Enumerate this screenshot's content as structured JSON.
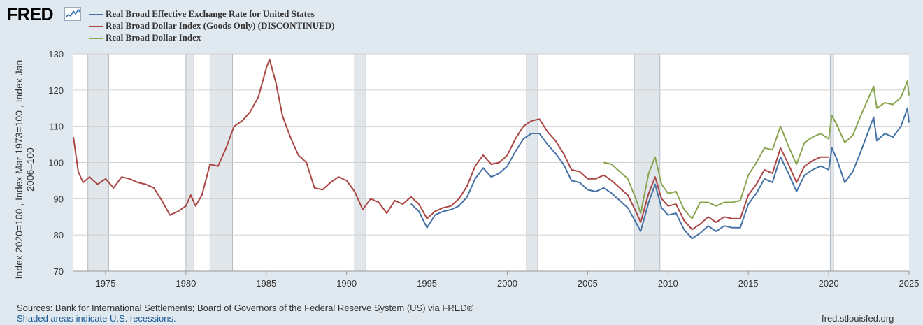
{
  "header": {
    "logo_text": "FRED",
    "logo_icon": "chart-line-icon"
  },
  "footer": {
    "sources": "Sources: Bank for International Settlements; Board of Governors of the Federal Reserve System (US) via FRED®",
    "recession_note": "Shaded areas indicate U.S. recessions.",
    "credit": "fred.stlouisfed.org"
  },
  "chart_data": {
    "type": "line",
    "title": "",
    "xlabel": "",
    "ylabel_lines": [
      "Index 2020=100 , Index Mar 1973=100 , Index Jan",
      "2006=100"
    ],
    "xlim": [
      1973.0,
      2025.0
    ],
    "ylim": [
      70,
      130
    ],
    "x_ticks": [
      1975,
      1980,
      1985,
      1990,
      1995,
      2000,
      2005,
      2010,
      2015,
      2020,
      2025
    ],
    "y_ticks": [
      70,
      80,
      90,
      100,
      110,
      120,
      130
    ],
    "grid": true,
    "legend_position": "top-left",
    "recessions": [
      [
        1973.9,
        1975.2
      ],
      [
        1980.0,
        1980.5
      ],
      [
        1981.5,
        1982.9
      ],
      [
        1990.5,
        1991.2
      ],
      [
        2001.2,
        2001.9
      ],
      [
        2007.9,
        2009.5
      ],
      [
        2020.1,
        2020.3
      ]
    ],
    "series": [
      {
        "name": "Real Broad Effective Exchange Rate for United States",
        "color": "#4572a7",
        "points": [
          [
            1994.0,
            88.6
          ],
          [
            1994.5,
            86.5
          ],
          [
            1995.0,
            82.0
          ],
          [
            1995.5,
            85.5
          ],
          [
            1996.0,
            86.5
          ],
          [
            1996.5,
            87.0
          ],
          [
            1997.0,
            88.0
          ],
          [
            1997.5,
            90.5
          ],
          [
            1998.0,
            95.5
          ],
          [
            1998.5,
            98.5
          ],
          [
            1999.0,
            96.0
          ],
          [
            1999.5,
            97.0
          ],
          [
            2000.0,
            99.0
          ],
          [
            2000.5,
            103.0
          ],
          [
            2001.0,
            106.5
          ],
          [
            2001.5,
            108.0
          ],
          [
            2002.0,
            108.0
          ],
          [
            2002.5,
            105.0
          ],
          [
            2003.0,
            102.5
          ],
          [
            2003.5,
            99.5
          ],
          [
            2004.0,
            95.0
          ],
          [
            2004.5,
            94.5
          ],
          [
            2005.0,
            92.5
          ],
          [
            2005.5,
            92.0
          ],
          [
            2006.0,
            93.0
          ],
          [
            2006.5,
            91.5
          ],
          [
            2007.0,
            89.5
          ],
          [
            2007.5,
            87.5
          ],
          [
            2008.0,
            83.5
          ],
          [
            2008.3,
            81.0
          ],
          [
            2008.8,
            89.0
          ],
          [
            2009.2,
            94.0
          ],
          [
            2009.6,
            87.5
          ],
          [
            2010.0,
            85.5
          ],
          [
            2010.5,
            86.0
          ],
          [
            2011.0,
            81.5
          ],
          [
            2011.5,
            79.0
          ],
          [
            2012.0,
            80.5
          ],
          [
            2012.5,
            82.5
          ],
          [
            2013.0,
            81.0
          ],
          [
            2013.5,
            82.5
          ],
          [
            2014.0,
            82.0
          ],
          [
            2014.5,
            82.0
          ],
          [
            2015.0,
            88.5
          ],
          [
            2015.5,
            91.5
          ],
          [
            2016.0,
            95.5
          ],
          [
            2016.5,
            94.5
          ],
          [
            2017.0,
            101.5
          ],
          [
            2017.5,
            97.0
          ],
          [
            2018.0,
            92.0
          ],
          [
            2018.5,
            96.5
          ],
          [
            2019.0,
            98.0
          ],
          [
            2019.5,
            99.0
          ],
          [
            2020.0,
            98.0
          ],
          [
            2020.2,
            104.0
          ],
          [
            2020.5,
            101.0
          ],
          [
            2021.0,
            94.5
          ],
          [
            2021.5,
            97.5
          ],
          [
            2022.0,
            103.0
          ],
          [
            2022.8,
            112.5
          ],
          [
            2023.0,
            106.0
          ],
          [
            2023.5,
            108.0
          ],
          [
            2024.0,
            107.0
          ],
          [
            2024.5,
            110.0
          ],
          [
            2024.9,
            115.0
          ],
          [
            2025.0,
            111.0
          ]
        ]
      },
      {
        "name": "Real Broad Dollar Index (Goods Only) (DISCONTINUED)",
        "color": "#aa4643",
        "points": [
          [
            1973.0,
            107.0
          ],
          [
            1973.3,
            97.5
          ],
          [
            1973.6,
            94.5
          ],
          [
            1974.0,
            96.0
          ],
          [
            1974.5,
            94.0
          ],
          [
            1975.0,
            95.5
          ],
          [
            1975.5,
            93.0
          ],
          [
            1976.0,
            96.0
          ],
          [
            1976.5,
            95.5
          ],
          [
            1977.0,
            94.5
          ],
          [
            1977.5,
            94.0
          ],
          [
            1978.0,
            93.0
          ],
          [
            1978.5,
            89.5
          ],
          [
            1979.0,
            85.5
          ],
          [
            1979.5,
            86.5
          ],
          [
            1980.0,
            88.0
          ],
          [
            1980.3,
            91.0
          ],
          [
            1980.6,
            88.0
          ],
          [
            1981.0,
            91.0
          ],
          [
            1981.5,
            99.5
          ],
          [
            1982.0,
            99.0
          ],
          [
            1982.5,
            104.0
          ],
          [
            1983.0,
            110.0
          ],
          [
            1983.5,
            111.5
          ],
          [
            1984.0,
            114.0
          ],
          [
            1984.5,
            118.0
          ],
          [
            1985.0,
            126.0
          ],
          [
            1985.2,
            128.5
          ],
          [
            1985.6,
            122.0
          ],
          [
            1986.0,
            113.0
          ],
          [
            1986.5,
            107.0
          ],
          [
            1987.0,
            102.0
          ],
          [
            1987.5,
            100.0
          ],
          [
            1988.0,
            93.0
          ],
          [
            1988.5,
            92.5
          ],
          [
            1989.0,
            94.5
          ],
          [
            1989.5,
            96.0
          ],
          [
            1990.0,
            95.0
          ],
          [
            1990.5,
            92.0
          ],
          [
            1991.0,
            87.0
          ],
          [
            1991.5,
            90.0
          ],
          [
            1992.0,
            89.0
          ],
          [
            1992.5,
            86.0
          ],
          [
            1993.0,
            89.5
          ],
          [
            1993.5,
            88.5
          ],
          [
            1994.0,
            90.5
          ],
          [
            1994.5,
            88.5
          ],
          [
            1995.0,
            84.5
          ],
          [
            1995.5,
            86.5
          ],
          [
            1996.0,
            87.5
          ],
          [
            1996.5,
            88.0
          ],
          [
            1997.0,
            90.0
          ],
          [
            1997.5,
            93.5
          ],
          [
            1998.0,
            99.0
          ],
          [
            1998.5,
            102.0
          ],
          [
            1999.0,
            99.5
          ],
          [
            1999.5,
            100.0
          ],
          [
            2000.0,
            102.0
          ],
          [
            2000.5,
            106.5
          ],
          [
            2001.0,
            110.0
          ],
          [
            2001.5,
            111.5
          ],
          [
            2002.0,
            112.0
          ],
          [
            2002.5,
            108.5
          ],
          [
            2003.0,
            106.0
          ],
          [
            2003.5,
            102.5
          ],
          [
            2004.0,
            98.0
          ],
          [
            2004.5,
            97.5
          ],
          [
            2005.0,
            95.5
          ],
          [
            2005.5,
            95.5
          ],
          [
            2006.0,
            96.5
          ],
          [
            2006.5,
            95.0
          ],
          [
            2007.0,
            93.0
          ],
          [
            2007.5,
            91.0
          ],
          [
            2008.0,
            86.5
          ],
          [
            2008.3,
            83.5
          ],
          [
            2008.8,
            91.5
          ],
          [
            2009.2,
            96.0
          ],
          [
            2009.6,
            90.0
          ],
          [
            2010.0,
            88.0
          ],
          [
            2010.5,
            88.5
          ],
          [
            2011.0,
            84.0
          ],
          [
            2011.5,
            81.5
          ],
          [
            2012.0,
            83.0
          ],
          [
            2012.5,
            85.0
          ],
          [
            2013.0,
            83.5
          ],
          [
            2013.5,
            85.0
          ],
          [
            2014.0,
            84.5
          ],
          [
            2014.5,
            84.5
          ],
          [
            2015.0,
            91.0
          ],
          [
            2015.5,
            94.0
          ],
          [
            2016.0,
            98.0
          ],
          [
            2016.5,
            97.0
          ],
          [
            2017.0,
            104.0
          ],
          [
            2017.5,
            99.5
          ],
          [
            2018.0,
            94.5
          ],
          [
            2018.5,
            99.0
          ],
          [
            2019.0,
            100.5
          ],
          [
            2019.5,
            101.5
          ],
          [
            2020.0,
            101.5
          ]
        ]
      },
      {
        "name": "Real Broad Dollar Index",
        "color": "#89a54e",
        "points": [
          [
            2006.0,
            100.0
          ],
          [
            2006.5,
            99.5
          ],
          [
            2007.0,
            97.5
          ],
          [
            2007.5,
            95.5
          ],
          [
            2008.0,
            90.0
          ],
          [
            2008.3,
            86.0
          ],
          [
            2008.8,
            97.0
          ],
          [
            2009.2,
            101.5
          ],
          [
            2009.6,
            94.0
          ],
          [
            2010.0,
            91.5
          ],
          [
            2010.5,
            92.0
          ],
          [
            2011.0,
            87.0
          ],
          [
            2011.5,
            84.5
          ],
          [
            2012.0,
            89.0
          ],
          [
            2012.5,
            89.0
          ],
          [
            2013.0,
            88.0
          ],
          [
            2013.5,
            89.0
          ],
          [
            2014.0,
            89.0
          ],
          [
            2014.5,
            89.5
          ],
          [
            2015.0,
            96.5
          ],
          [
            2015.5,
            100.0
          ],
          [
            2016.0,
            104.0
          ],
          [
            2016.5,
            103.5
          ],
          [
            2017.0,
            110.0
          ],
          [
            2017.5,
            104.5
          ],
          [
            2018.0,
            99.5
          ],
          [
            2018.5,
            105.5
          ],
          [
            2019.0,
            107.0
          ],
          [
            2019.5,
            108.0
          ],
          [
            2020.0,
            106.5
          ],
          [
            2020.2,
            113.0
          ],
          [
            2020.5,
            110.5
          ],
          [
            2021.0,
            105.5
          ],
          [
            2021.5,
            107.5
          ],
          [
            2022.0,
            113.0
          ],
          [
            2022.8,
            121.0
          ],
          [
            2023.0,
            115.0
          ],
          [
            2023.5,
            116.5
          ],
          [
            2024.0,
            116.0
          ],
          [
            2024.5,
            118.0
          ],
          [
            2024.9,
            122.5
          ],
          [
            2025.0,
            118.5
          ]
        ]
      }
    ]
  }
}
